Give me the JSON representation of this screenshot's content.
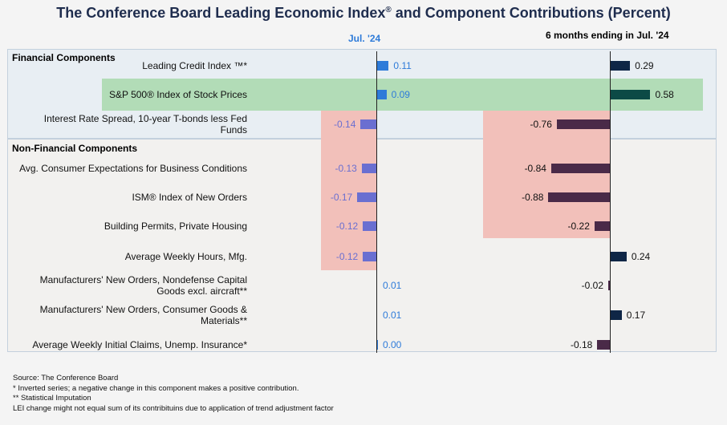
{
  "title": "The Conference Board Leading Economic Index",
  "title_mark": "®",
  "title_suffix": " and Component Contributions (Percent)",
  "col_month": "Jul. '24",
  "col_6m": "6 months ending in Jul. '24",
  "sections": {
    "financial": "Financial Components",
    "nonfinancial": "Non-Financial Components"
  },
  "colors": {
    "month_bar": "#2e7bd9",
    "month_neg_bar": "#6a6fd1",
    "six_pos_bar": "#0f2646",
    "six_neg_bar": "#4a2a48",
    "sp500_bar": "#0c4a46",
    "month_label": "#2e7bd9",
    "month_neg_label": "#6a6fd1"
  },
  "chart_data": [
    {
      "type": "bar",
      "title": "Jul. '24",
      "categories": [
        "Leading Credit Index ™*",
        "S&P 500® Index of Stock Prices",
        "Interest Rate Spread, 10-year T-bonds less Fed Funds",
        "Avg. Consumer Expectations for Business Conditions",
        "ISM® Index of New Orders",
        "Building Permits, Private Housing",
        "Average Weekly Hours, Mfg.",
        "Manufacturers' New Orders, Nondefense Capital Goods excl. aircraft**",
        "Manufacturers' New Orders, Consumer Goods & Materials**",
        "Average Weekly Initial Claims, Unemp. Insurance*"
      ],
      "values": [
        0.11,
        0.09,
        -0.14,
        -0.13,
        -0.17,
        -0.12,
        -0.12,
        0.01,
        0.01,
        0.0
      ],
      "labels": [
        "0.11",
        "0.09",
        "-0.14",
        "-0.13",
        "-0.17",
        "-0.12",
        "-0.12",
        "0.01",
        "0.01",
        "0.00"
      ]
    },
    {
      "type": "bar",
      "title": "6 months ending in Jul. '24",
      "categories": [
        "Leading Credit Index ™*",
        "S&P 500® Index of Stock Prices",
        "Interest Rate Spread, 10-year T-bonds less Fed Funds",
        "Avg. Consumer Expectations for Business Conditions",
        "ISM® Index of New Orders",
        "Building Permits, Private Housing",
        "Average Weekly Hours, Mfg.",
        "Manufacturers' New Orders, Nondefense Capital Goods excl. aircraft**",
        "Manufacturers' New Orders, Consumer Goods & Materials**",
        "Average Weekly Initial Claims, Unemp. Insurance*"
      ],
      "values": [
        0.29,
        0.58,
        -0.76,
        -0.84,
        -0.88,
        -0.22,
        0.24,
        -0.02,
        0.17,
        -0.18
      ],
      "labels": [
        "0.29",
        "0.58",
        "-0.76",
        "-0.84",
        "-0.88",
        "-0.22",
        "0.24",
        "-0.02",
        "0.17",
        "-0.18"
      ]
    }
  ],
  "row_labels": [
    [
      "Leading Credit Index ™*"
    ],
    [
      "S&P 500® Index of Stock Prices"
    ],
    [
      "Interest Rate Spread, 10-year T-bonds less Fed",
      "Funds"
    ],
    [
      "Avg. Consumer Expectations for Business Conditions"
    ],
    [
      "ISM® Index of New Orders"
    ],
    [
      "Building Permits, Private Housing"
    ],
    [
      "Average Weekly Hours, Mfg."
    ],
    [
      "Manufacturers' New Orders, Nondefense Capital",
      "Goods excl. aircraft**"
    ],
    [
      "Manufacturers' New Orders, Consumer Goods &",
      "Materials**"
    ],
    [
      "Average Weekly Initial Claims, Unemp. Insurance*"
    ]
  ],
  "notes": [
    "Source: The Conference Board",
    "*  Inverted series; a negative change in this component makes a positive contribution.",
    "**  Statistical Imputation",
    "LEI change might not equal sum of its contribituins due to application of trend adjustment factor"
  ]
}
